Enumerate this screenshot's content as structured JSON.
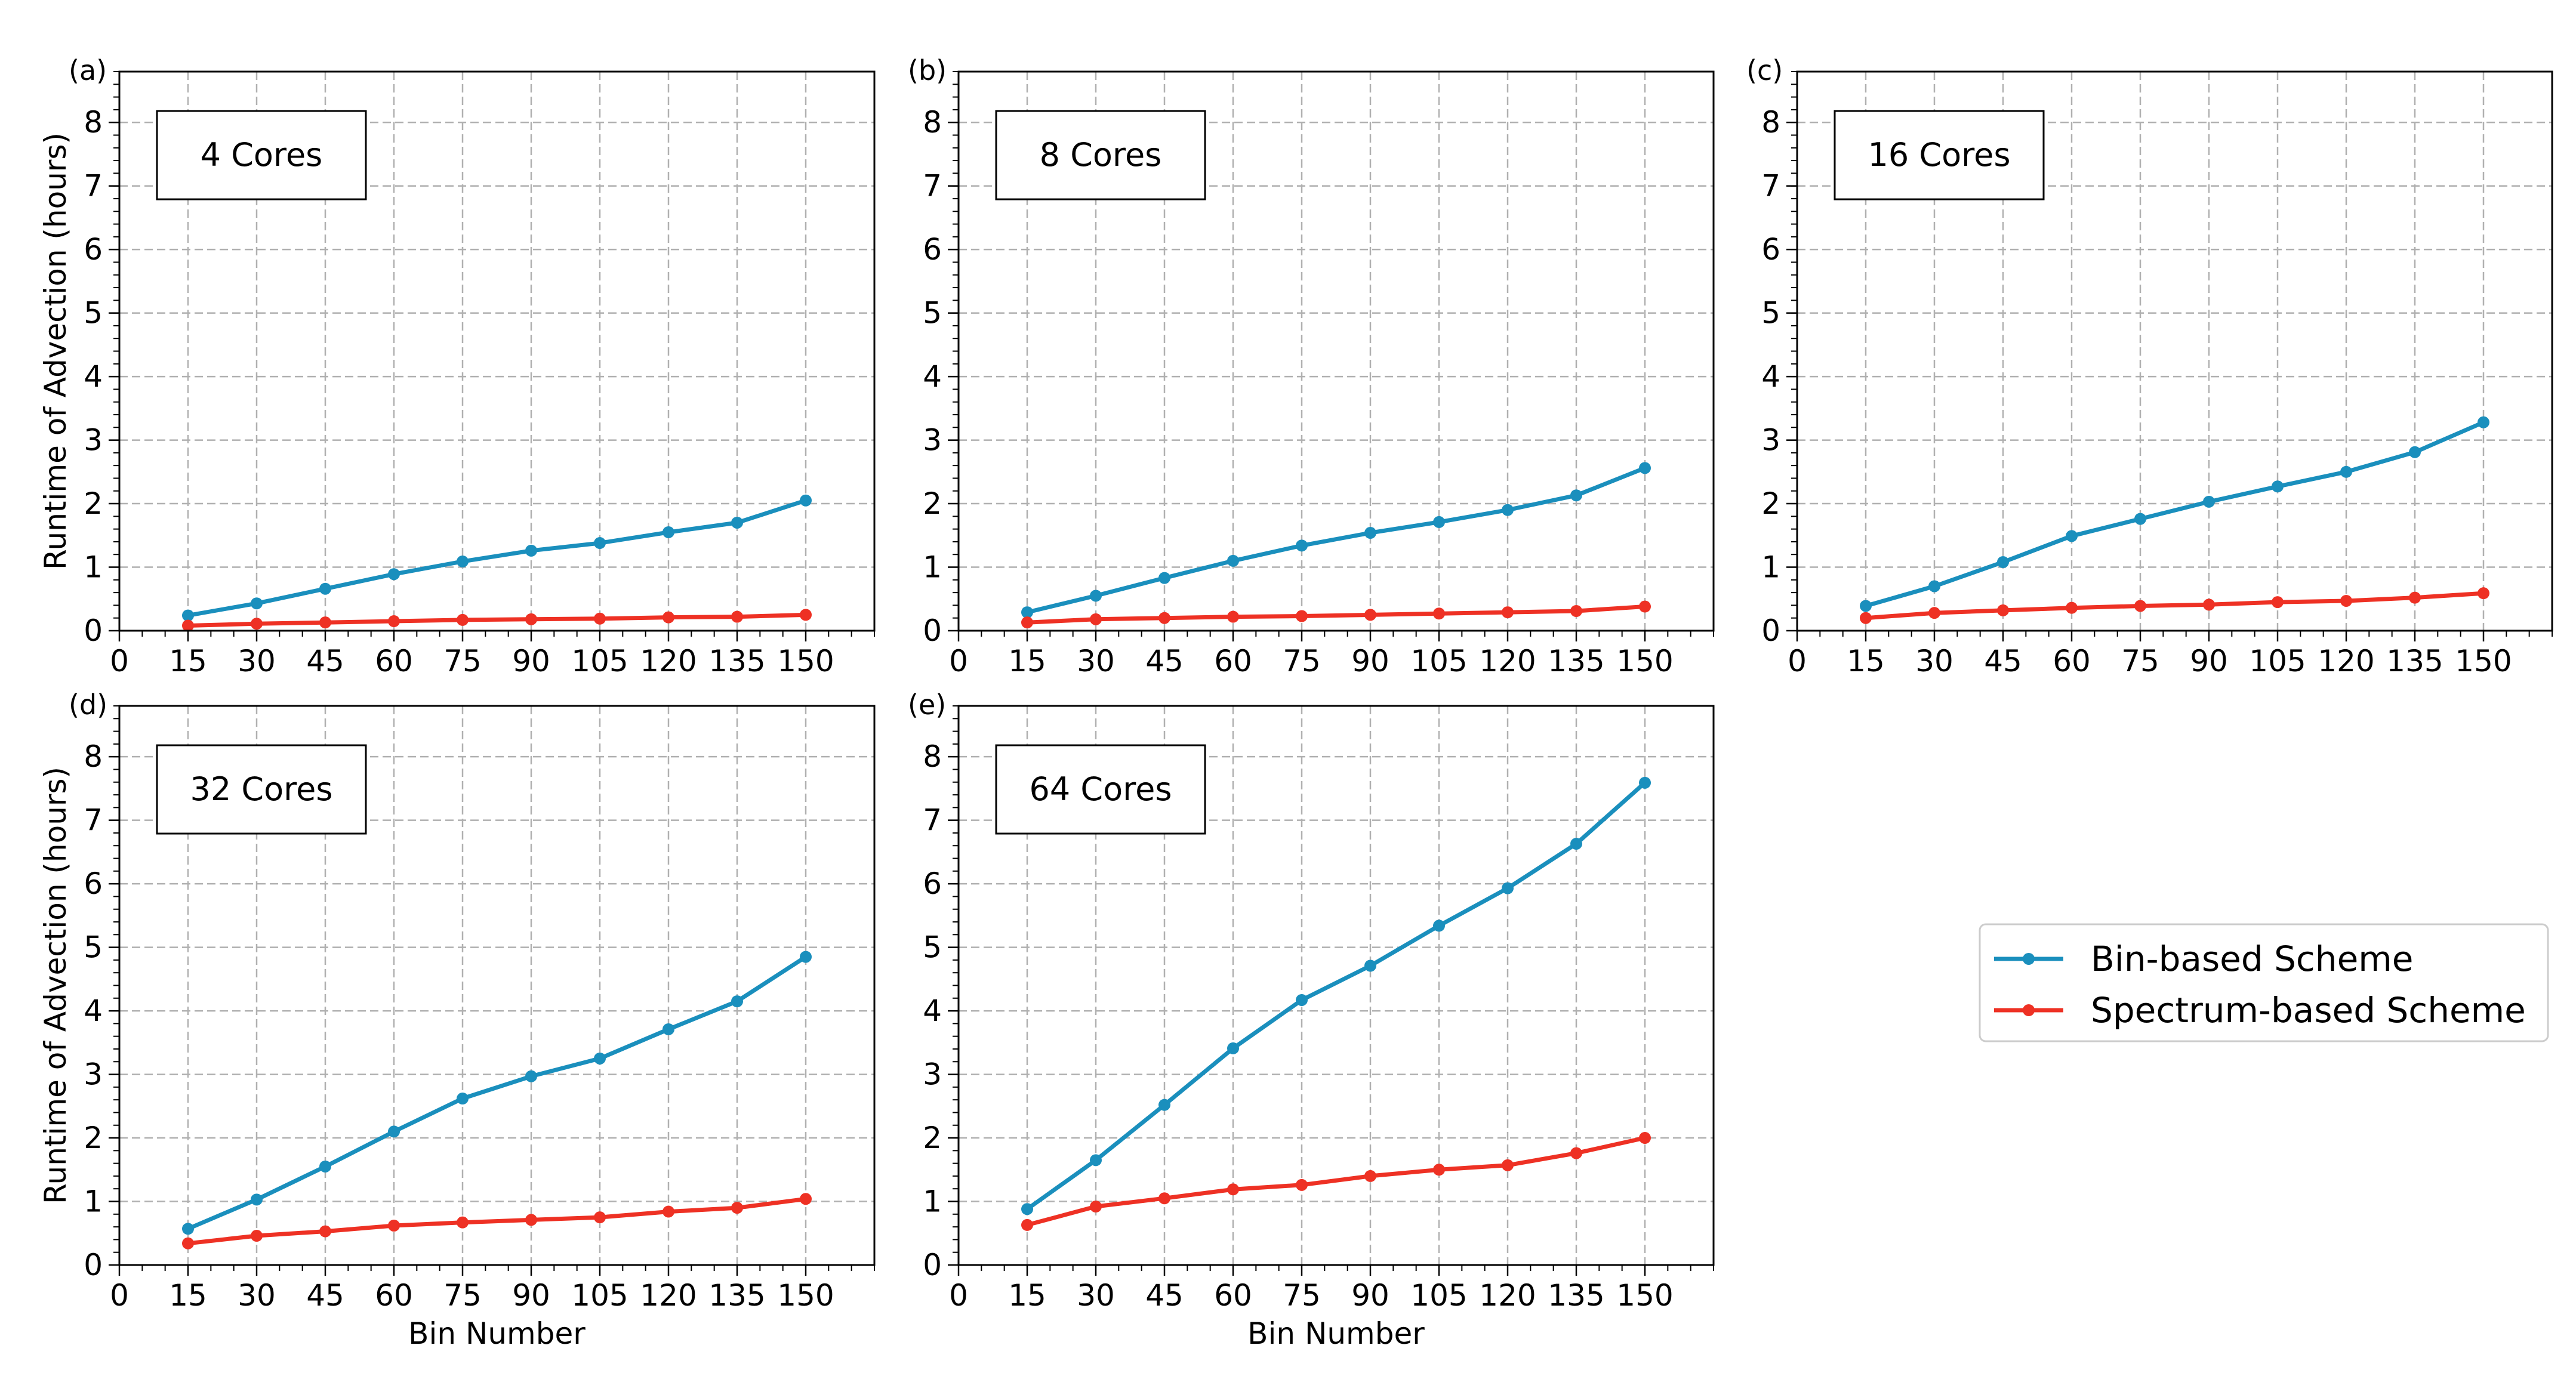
{
  "figure": {
    "ylabel": "Runtime of Advection (hours)",
    "xlabel": "Bin Number",
    "colors": {
      "bin": "#1a8fbd",
      "spectrum": "#ee3124",
      "grid": "#b0b0b0"
    }
  },
  "legend": {
    "entries": [
      {
        "name": "Bin-based Scheme",
        "color": "#1a8fbd"
      },
      {
        "name": "Spectrum-based Scheme",
        "color": "#ee3124"
      }
    ],
    "location": "center-right"
  },
  "chart_data": [
    {
      "type": "line",
      "panel_label": "(a)",
      "title": "4 Cores",
      "xlabel": "",
      "ylabel": "Runtime of Advection (hours)",
      "x": [
        15,
        30,
        45,
        60,
        75,
        90,
        105,
        120,
        135,
        150
      ],
      "xlim": [
        0,
        165
      ],
      "ylim": [
        0,
        8.8
      ],
      "xticks": [
        0,
        15,
        30,
        45,
        60,
        75,
        90,
        105,
        120,
        135,
        150
      ],
      "yticks": [
        0,
        1,
        2,
        3,
        4,
        5,
        6,
        7,
        8
      ],
      "grid": true,
      "series": [
        {
          "name": "Bin-based Scheme",
          "values": [
            0.24,
            0.43,
            0.66,
            0.89,
            1.09,
            1.26,
            1.38,
            1.55,
            1.7,
            2.05
          ]
        },
        {
          "name": "Spectrum-based Scheme",
          "values": [
            0.08,
            0.11,
            0.13,
            0.15,
            0.17,
            0.18,
            0.19,
            0.21,
            0.22,
            0.25
          ]
        }
      ]
    },
    {
      "type": "line",
      "panel_label": "(b)",
      "title": "8 Cores",
      "xlabel": "",
      "ylabel": "",
      "x": [
        15,
        30,
        45,
        60,
        75,
        90,
        105,
        120,
        135,
        150
      ],
      "xlim": [
        0,
        165
      ],
      "ylim": [
        0,
        8.8
      ],
      "xticks": [
        0,
        15,
        30,
        45,
        60,
        75,
        90,
        105,
        120,
        135,
        150
      ],
      "yticks": [
        0,
        1,
        2,
        3,
        4,
        5,
        6,
        7,
        8
      ],
      "grid": true,
      "series": [
        {
          "name": "Bin-based Scheme",
          "values": [
            0.29,
            0.55,
            0.83,
            1.1,
            1.34,
            1.54,
            1.71,
            1.9,
            2.13,
            2.56
          ]
        },
        {
          "name": "Spectrum-based Scheme",
          "values": [
            0.13,
            0.18,
            0.2,
            0.22,
            0.23,
            0.25,
            0.27,
            0.29,
            0.31,
            0.38
          ]
        }
      ]
    },
    {
      "type": "line",
      "panel_label": "(c)",
      "title": "16 Cores",
      "xlabel": "",
      "ylabel": "",
      "x": [
        15,
        30,
        45,
        60,
        75,
        90,
        105,
        120,
        135,
        150
      ],
      "xlim": [
        0,
        165
      ],
      "ylim": [
        0,
        8.8
      ],
      "xticks": [
        0,
        15,
        30,
        45,
        60,
        75,
        90,
        105,
        120,
        135,
        150
      ],
      "yticks": [
        0,
        1,
        2,
        3,
        4,
        5,
        6,
        7,
        8
      ],
      "grid": true,
      "series": [
        {
          "name": "Bin-based Scheme",
          "values": [
            0.39,
            0.7,
            1.08,
            1.49,
            1.76,
            2.03,
            2.27,
            2.5,
            2.81,
            3.28
          ]
        },
        {
          "name": "Spectrum-based Scheme",
          "values": [
            0.2,
            0.28,
            0.32,
            0.36,
            0.39,
            0.41,
            0.45,
            0.47,
            0.52,
            0.59
          ]
        }
      ]
    },
    {
      "type": "line",
      "panel_label": "(d)",
      "title": "32 Cores",
      "xlabel": "Bin Number",
      "ylabel": "Runtime of Advection (hours)",
      "x": [
        15,
        30,
        45,
        60,
        75,
        90,
        105,
        120,
        135,
        150
      ],
      "xlim": [
        0,
        165
      ],
      "ylim": [
        0,
        8.8
      ],
      "xticks": [
        0,
        15,
        30,
        45,
        60,
        75,
        90,
        105,
        120,
        135,
        150
      ],
      "yticks": [
        0,
        1,
        2,
        3,
        4,
        5,
        6,
        7,
        8
      ],
      "grid": true,
      "series": [
        {
          "name": "Bin-based Scheme",
          "values": [
            0.57,
            1.03,
            1.55,
            2.1,
            2.62,
            2.97,
            3.25,
            3.71,
            4.15,
            4.85
          ]
        },
        {
          "name": "Spectrum-based Scheme",
          "values": [
            0.34,
            0.46,
            0.53,
            0.62,
            0.67,
            0.71,
            0.75,
            0.84,
            0.9,
            1.04
          ]
        }
      ]
    },
    {
      "type": "line",
      "panel_label": "(e)",
      "title": "64 Cores",
      "xlabel": "Bin Number",
      "ylabel": "",
      "x": [
        15,
        30,
        45,
        60,
        75,
        90,
        105,
        120,
        135,
        150
      ],
      "xlim": [
        0,
        165
      ],
      "ylim": [
        0,
        8.8
      ],
      "xticks": [
        0,
        15,
        30,
        45,
        60,
        75,
        90,
        105,
        120,
        135,
        150
      ],
      "yticks": [
        0,
        1,
        2,
        3,
        4,
        5,
        6,
        7,
        8
      ],
      "grid": true,
      "series": [
        {
          "name": "Bin-based Scheme",
          "values": [
            0.88,
            1.65,
            2.52,
            3.41,
            4.17,
            4.71,
            5.34,
            5.93,
            6.63,
            7.59
          ]
        },
        {
          "name": "Spectrum-based Scheme",
          "values": [
            0.63,
            0.92,
            1.05,
            1.19,
            1.26,
            1.4,
            1.5,
            1.57,
            1.76,
            2.0
          ]
        }
      ]
    }
  ]
}
